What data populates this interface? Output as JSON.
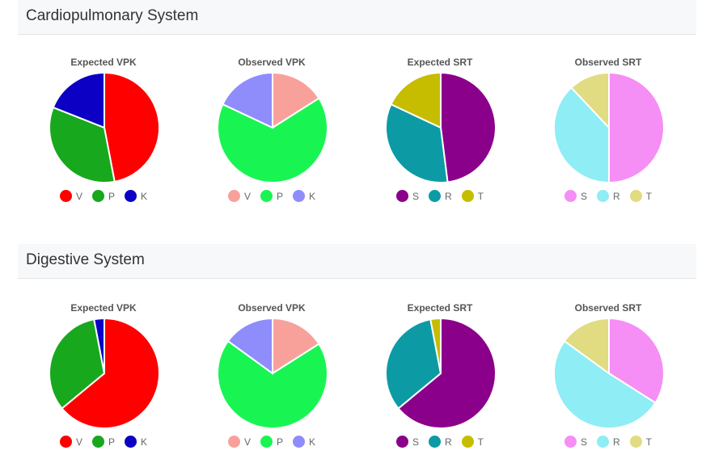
{
  "sections": [
    {
      "title": "Cardiopulmonary System",
      "charts": [
        {
          "title": "Expected VPK",
          "labels": [
            "V",
            "P",
            "K"
          ],
          "values": [
            47,
            34,
            19
          ],
          "colors": [
            "#ff0000",
            "#17a81e",
            "#0b00c4"
          ]
        },
        {
          "title": "Observed VPK",
          "labels": [
            "V",
            "P",
            "K"
          ],
          "values": [
            16,
            66,
            18
          ],
          "colors": [
            "#f8a19b",
            "#18f553",
            "#8f8cfb"
          ]
        },
        {
          "title": "Expected SRT",
          "labels": [
            "S",
            "R",
            "T"
          ],
          "values": [
            48,
            34,
            18
          ],
          "colors": [
            "#8a008a",
            "#0c9ba5",
            "#c6bd00"
          ]
        },
        {
          "title": "Observed SRT",
          "labels": [
            "S",
            "R",
            "T"
          ],
          "values": [
            50,
            38,
            12
          ],
          "colors": [
            "#f58ef5",
            "#8eedf5",
            "#e1db82"
          ]
        }
      ]
    },
    {
      "title": "Digestive System",
      "charts": [
        {
          "title": "Expected VPK",
          "labels": [
            "V",
            "P",
            "K"
          ],
          "values": [
            64,
            33,
            3
          ],
          "colors": [
            "#ff0000",
            "#17a81e",
            "#0b00c4"
          ]
        },
        {
          "title": "Observed VPK",
          "labels": [
            "V",
            "P",
            "K"
          ],
          "values": [
            16,
            69,
            15
          ],
          "colors": [
            "#f8a19b",
            "#18f553",
            "#8f8cfb"
          ]
        },
        {
          "title": "Expected SRT",
          "labels": [
            "S",
            "R",
            "T"
          ],
          "values": [
            64,
            33,
            3
          ],
          "colors": [
            "#8a008a",
            "#0c9ba5",
            "#c6bd00"
          ]
        },
        {
          "title": "Observed SRT",
          "labels": [
            "S",
            "R",
            "T"
          ],
          "values": [
            34,
            51,
            15
          ],
          "colors": [
            "#f58ef5",
            "#8eedf5",
            "#e1db82"
          ]
        }
      ]
    }
  ],
  "chart_data": [
    {
      "type": "pie",
      "title": "Cardiopulmonary System - Expected VPK",
      "categories": [
        "V",
        "P",
        "K"
      ],
      "values": [
        47,
        34,
        19
      ]
    },
    {
      "type": "pie",
      "title": "Cardiopulmonary System - Observed VPK",
      "categories": [
        "V",
        "P",
        "K"
      ],
      "values": [
        16,
        66,
        18
      ]
    },
    {
      "type": "pie",
      "title": "Cardiopulmonary System - Expected SRT",
      "categories": [
        "S",
        "R",
        "T"
      ],
      "values": [
        48,
        34,
        18
      ]
    },
    {
      "type": "pie",
      "title": "Cardiopulmonary System - Observed SRT",
      "categories": [
        "S",
        "R",
        "T"
      ],
      "values": [
        50,
        38,
        12
      ]
    },
    {
      "type": "pie",
      "title": "Digestive System - Expected VPK",
      "categories": [
        "V",
        "P",
        "K"
      ],
      "values": [
        64,
        33,
        3
      ]
    },
    {
      "type": "pie",
      "title": "Digestive System - Observed VPK",
      "categories": [
        "V",
        "P",
        "K"
      ],
      "values": [
        16,
        69,
        15
      ]
    },
    {
      "type": "pie",
      "title": "Digestive System - Expected SRT",
      "categories": [
        "S",
        "R",
        "T"
      ],
      "values": [
        64,
        33,
        3
      ]
    },
    {
      "type": "pie",
      "title": "Digestive System - Observed SRT",
      "categories": [
        "S",
        "R",
        "T"
      ],
      "values": [
        34,
        51,
        15
      ]
    }
  ]
}
